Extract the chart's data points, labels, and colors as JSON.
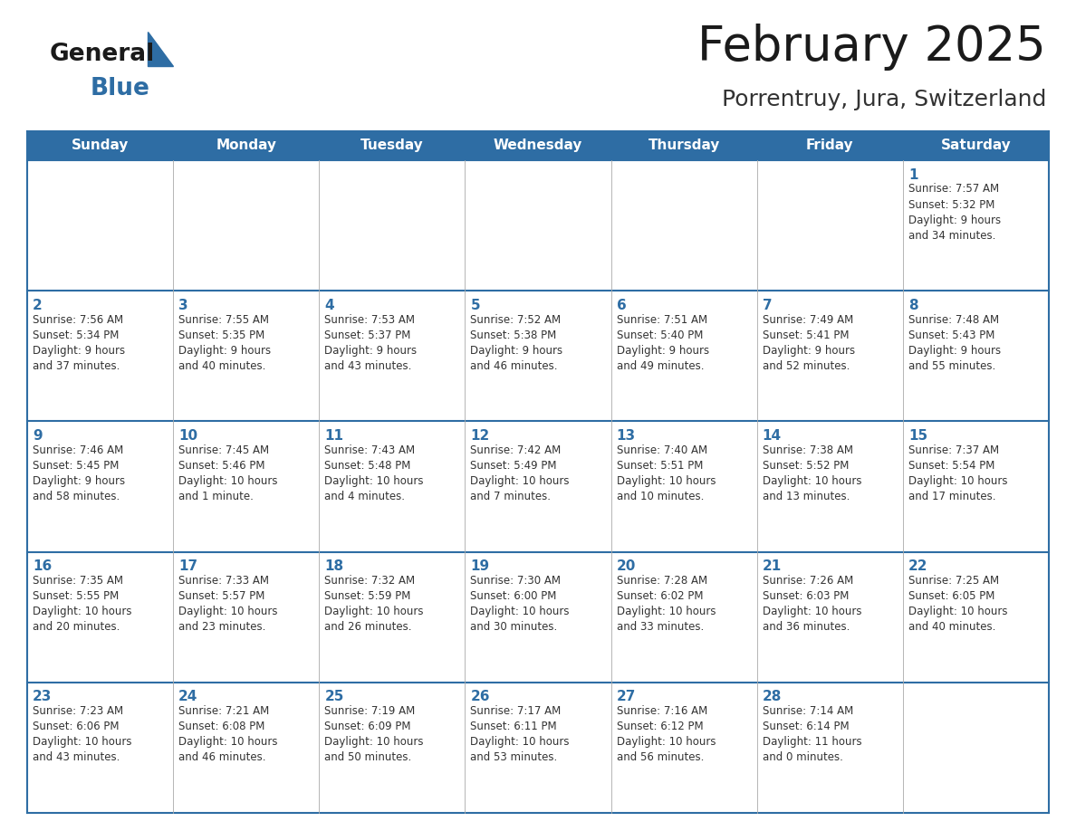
{
  "title": "February 2025",
  "subtitle": "Porrentruy, Jura, Switzerland",
  "header_bg": "#2E6DA4",
  "header_text": "#FFFFFF",
  "border_color": "#2E6DA4",
  "row_border_color": "#2E6DA4",
  "col_border_color": "#aaaaaa",
  "day_headers": [
    "Sunday",
    "Monday",
    "Tuesday",
    "Wednesday",
    "Thursday",
    "Friday",
    "Saturday"
  ],
  "title_color": "#1a1a1a",
  "subtitle_color": "#333333",
  "day_num_color": "#2E6DA4",
  "cell_text_color": "#333333",
  "logo_general_color": "#1a1a1a",
  "logo_blue_color": "#2E6DA4",
  "logo_triangle_color": "#2E6DA4",
  "weeks": [
    [
      {
        "day": "",
        "text": ""
      },
      {
        "day": "",
        "text": ""
      },
      {
        "day": "",
        "text": ""
      },
      {
        "day": "",
        "text": ""
      },
      {
        "day": "",
        "text": ""
      },
      {
        "day": "",
        "text": ""
      },
      {
        "day": "1",
        "text": "Sunrise: 7:57 AM\nSunset: 5:32 PM\nDaylight: 9 hours\nand 34 minutes."
      }
    ],
    [
      {
        "day": "2",
        "text": "Sunrise: 7:56 AM\nSunset: 5:34 PM\nDaylight: 9 hours\nand 37 minutes."
      },
      {
        "day": "3",
        "text": "Sunrise: 7:55 AM\nSunset: 5:35 PM\nDaylight: 9 hours\nand 40 minutes."
      },
      {
        "day": "4",
        "text": "Sunrise: 7:53 AM\nSunset: 5:37 PM\nDaylight: 9 hours\nand 43 minutes."
      },
      {
        "day": "5",
        "text": "Sunrise: 7:52 AM\nSunset: 5:38 PM\nDaylight: 9 hours\nand 46 minutes."
      },
      {
        "day": "6",
        "text": "Sunrise: 7:51 AM\nSunset: 5:40 PM\nDaylight: 9 hours\nand 49 minutes."
      },
      {
        "day": "7",
        "text": "Sunrise: 7:49 AM\nSunset: 5:41 PM\nDaylight: 9 hours\nand 52 minutes."
      },
      {
        "day": "8",
        "text": "Sunrise: 7:48 AM\nSunset: 5:43 PM\nDaylight: 9 hours\nand 55 minutes."
      }
    ],
    [
      {
        "day": "9",
        "text": "Sunrise: 7:46 AM\nSunset: 5:45 PM\nDaylight: 9 hours\nand 58 minutes."
      },
      {
        "day": "10",
        "text": "Sunrise: 7:45 AM\nSunset: 5:46 PM\nDaylight: 10 hours\nand 1 minute."
      },
      {
        "day": "11",
        "text": "Sunrise: 7:43 AM\nSunset: 5:48 PM\nDaylight: 10 hours\nand 4 minutes."
      },
      {
        "day": "12",
        "text": "Sunrise: 7:42 AM\nSunset: 5:49 PM\nDaylight: 10 hours\nand 7 minutes."
      },
      {
        "day": "13",
        "text": "Sunrise: 7:40 AM\nSunset: 5:51 PM\nDaylight: 10 hours\nand 10 minutes."
      },
      {
        "day": "14",
        "text": "Sunrise: 7:38 AM\nSunset: 5:52 PM\nDaylight: 10 hours\nand 13 minutes."
      },
      {
        "day": "15",
        "text": "Sunrise: 7:37 AM\nSunset: 5:54 PM\nDaylight: 10 hours\nand 17 minutes."
      }
    ],
    [
      {
        "day": "16",
        "text": "Sunrise: 7:35 AM\nSunset: 5:55 PM\nDaylight: 10 hours\nand 20 minutes."
      },
      {
        "day": "17",
        "text": "Sunrise: 7:33 AM\nSunset: 5:57 PM\nDaylight: 10 hours\nand 23 minutes."
      },
      {
        "day": "18",
        "text": "Sunrise: 7:32 AM\nSunset: 5:59 PM\nDaylight: 10 hours\nand 26 minutes."
      },
      {
        "day": "19",
        "text": "Sunrise: 7:30 AM\nSunset: 6:00 PM\nDaylight: 10 hours\nand 30 minutes."
      },
      {
        "day": "20",
        "text": "Sunrise: 7:28 AM\nSunset: 6:02 PM\nDaylight: 10 hours\nand 33 minutes."
      },
      {
        "day": "21",
        "text": "Sunrise: 7:26 AM\nSunset: 6:03 PM\nDaylight: 10 hours\nand 36 minutes."
      },
      {
        "day": "22",
        "text": "Sunrise: 7:25 AM\nSunset: 6:05 PM\nDaylight: 10 hours\nand 40 minutes."
      }
    ],
    [
      {
        "day": "23",
        "text": "Sunrise: 7:23 AM\nSunset: 6:06 PM\nDaylight: 10 hours\nand 43 minutes."
      },
      {
        "day": "24",
        "text": "Sunrise: 7:21 AM\nSunset: 6:08 PM\nDaylight: 10 hours\nand 46 minutes."
      },
      {
        "day": "25",
        "text": "Sunrise: 7:19 AM\nSunset: 6:09 PM\nDaylight: 10 hours\nand 50 minutes."
      },
      {
        "day": "26",
        "text": "Sunrise: 7:17 AM\nSunset: 6:11 PM\nDaylight: 10 hours\nand 53 minutes."
      },
      {
        "day": "27",
        "text": "Sunrise: 7:16 AM\nSunset: 6:12 PM\nDaylight: 10 hours\nand 56 minutes."
      },
      {
        "day": "28",
        "text": "Sunrise: 7:14 AM\nSunset: 6:14 PM\nDaylight: 11 hours\nand 0 minutes."
      },
      {
        "day": "",
        "text": ""
      }
    ]
  ]
}
